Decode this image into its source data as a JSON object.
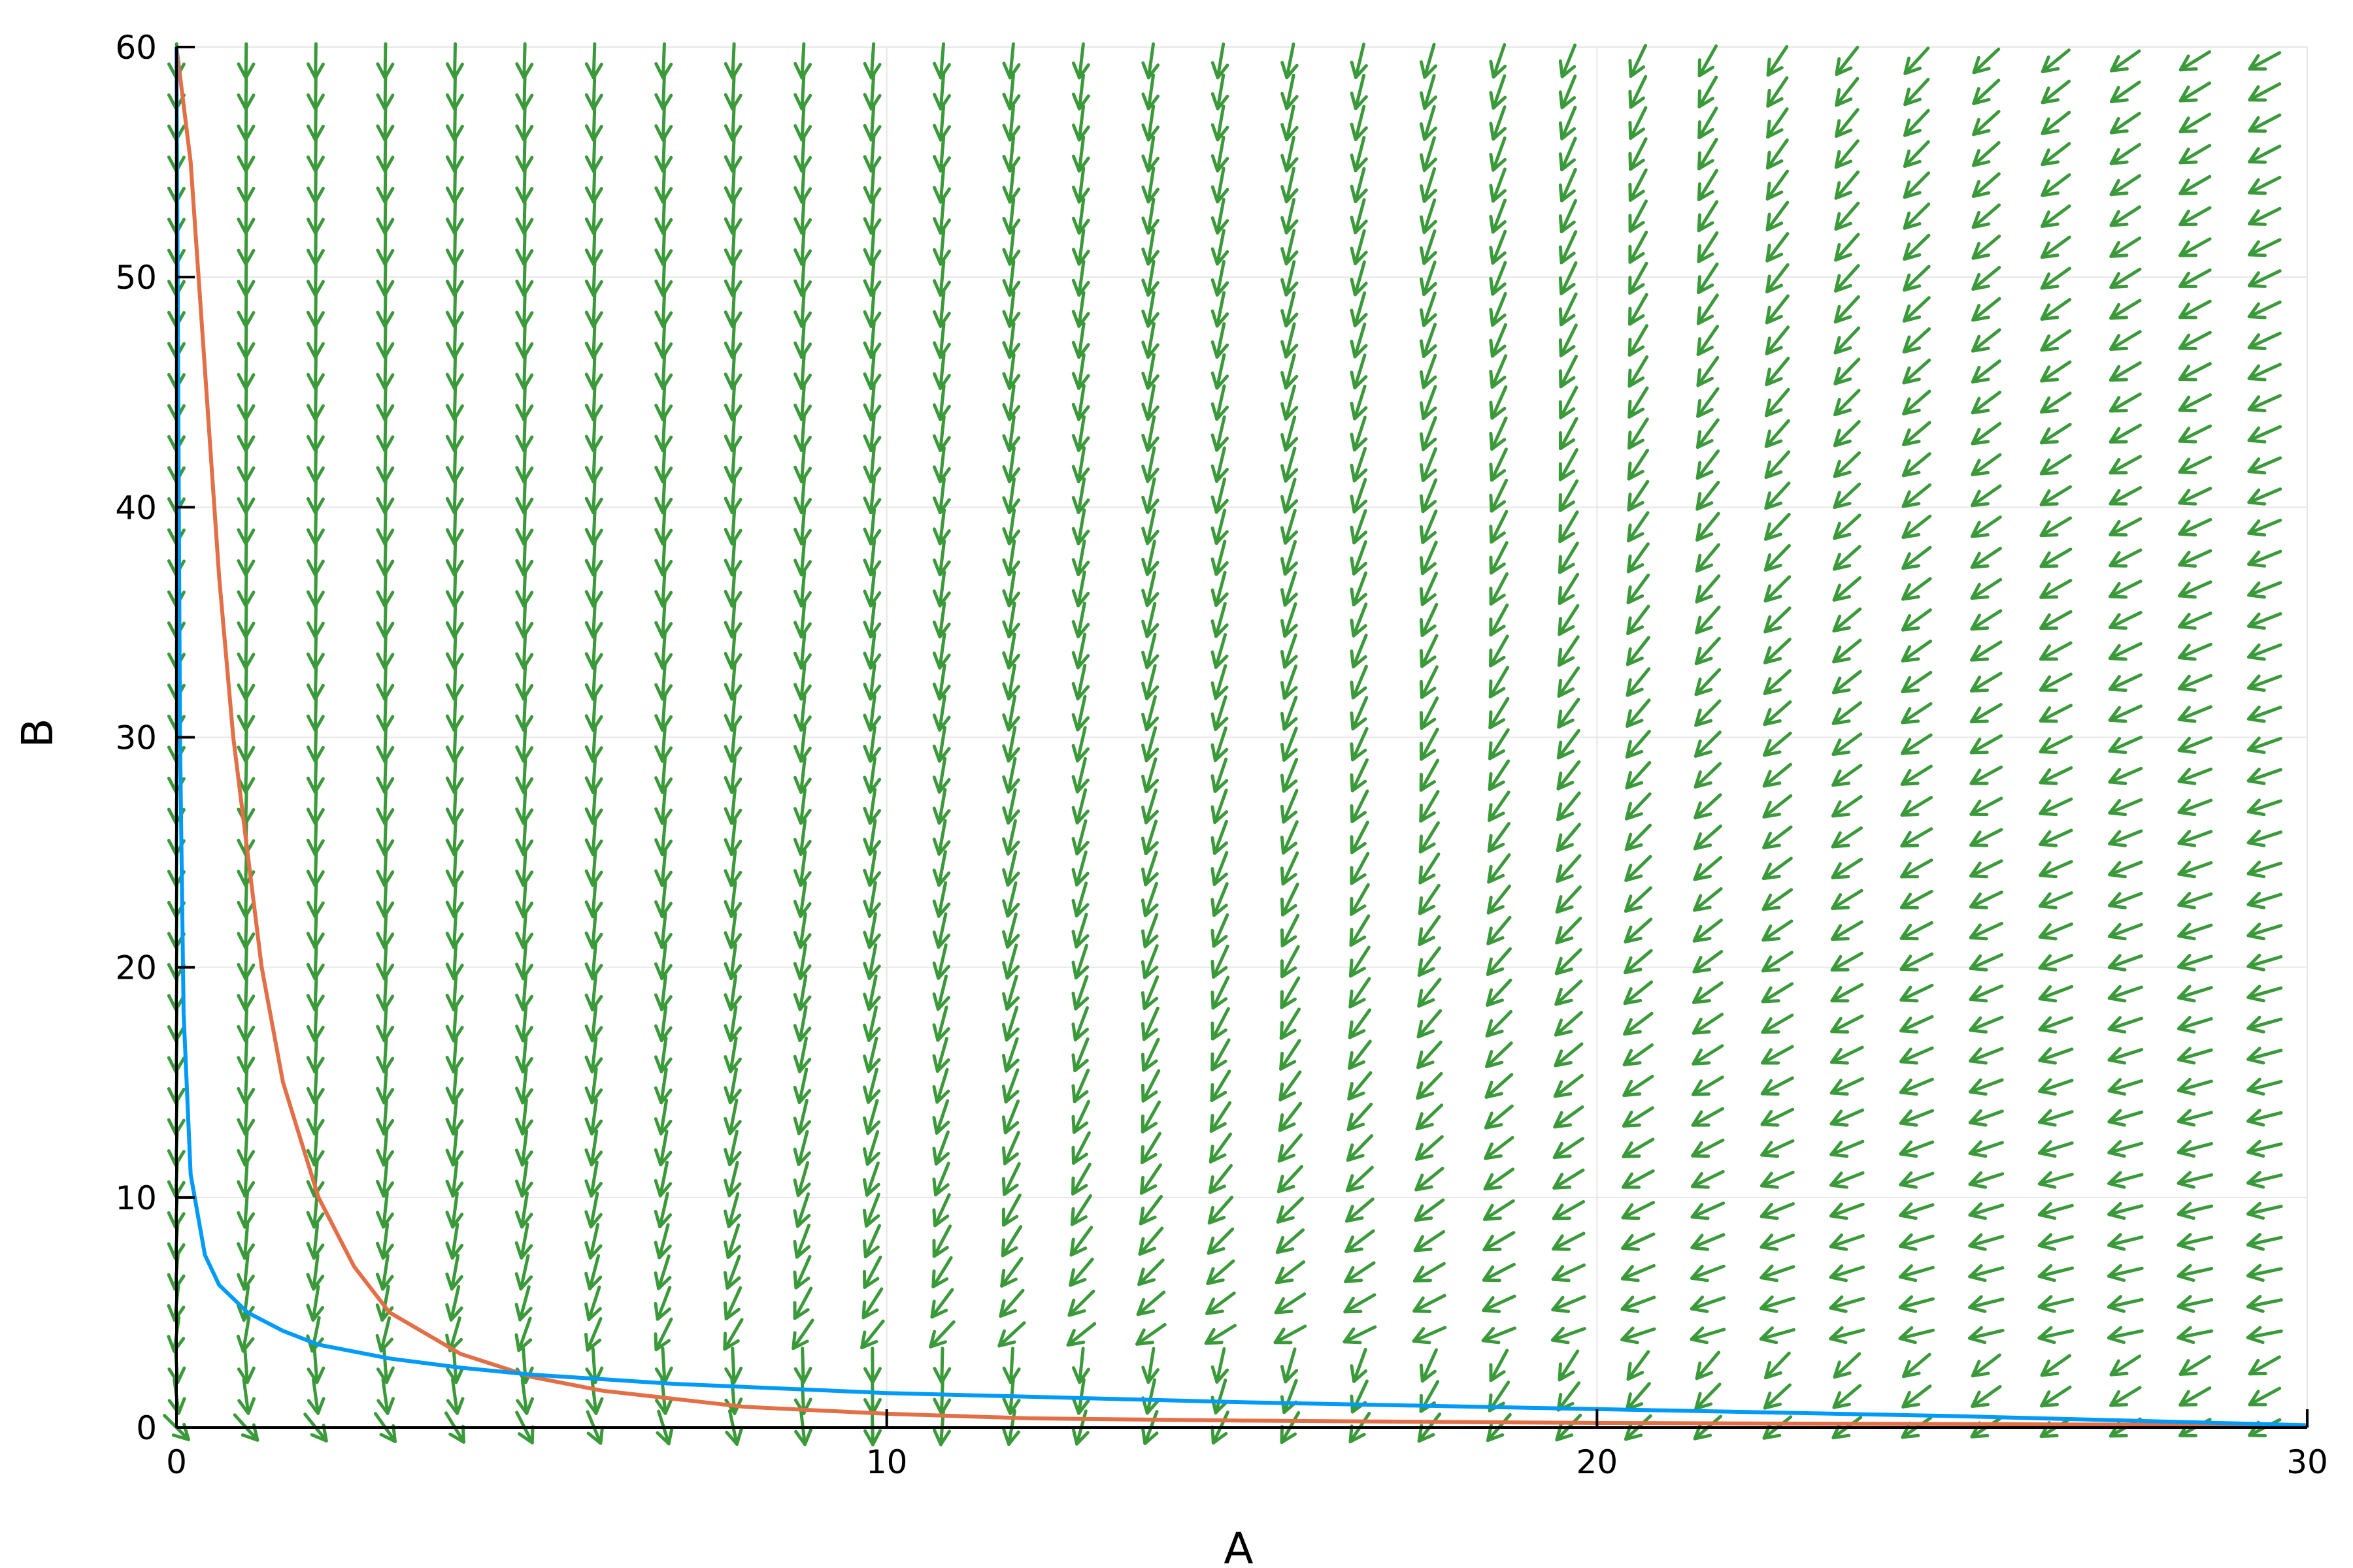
{
  "chart_data": {
    "type": "line",
    "title": "",
    "xlabel": "A",
    "ylabel": "B",
    "xlim": [
      0,
      30
    ],
    "ylim": [
      0,
      60
    ],
    "xticks": [
      0,
      10,
      20,
      30
    ],
    "yticks": [
      0,
      10,
      20,
      30,
      40,
      50,
      60
    ],
    "grid": true,
    "legend": "none",
    "series": [
      {
        "color": "#e26f46",
        "x": [
          0.0,
          0.2,
          0.4,
          0.6,
          0.8,
          1.0,
          1.2,
          1.5,
          2.0,
          2.5,
          3.0,
          4.0,
          5.0,
          6.0,
          8.0,
          10.0,
          12.0,
          15.0,
          20.0,
          25.0,
          30.0
        ],
        "y": [
          60.0,
          55.0,
          46.0,
          37.0,
          30.0,
          25.0,
          20.0,
          15.0,
          10.0,
          7.0,
          5.0,
          3.2,
          2.2,
          1.6,
          0.9,
          0.6,
          0.4,
          0.3,
          0.2,
          0.15,
          0.1
        ]
      },
      {
        "color": "#009af9",
        "x": [
          0.0,
          0.05,
          0.1,
          0.2,
          0.4,
          0.6,
          1.0,
          1.5,
          2.0,
          3.0,
          4.0,
          5.0,
          7.0,
          10.0,
          15.0,
          20.0,
          25.0,
          30.0
        ],
        "y": [
          60.0,
          30.0,
          18.0,
          11.0,
          7.5,
          6.2,
          5.0,
          4.2,
          3.6,
          3.0,
          2.6,
          2.3,
          1.9,
          1.5,
          1.1,
          0.8,
          0.5,
          0.1
        ]
      }
    ],
    "vector_field": {
      "color": "#3a9a3a",
      "x_spacing": 0.98,
      "y_spacing": 1.35,
      "description_free": true
    }
  }
}
